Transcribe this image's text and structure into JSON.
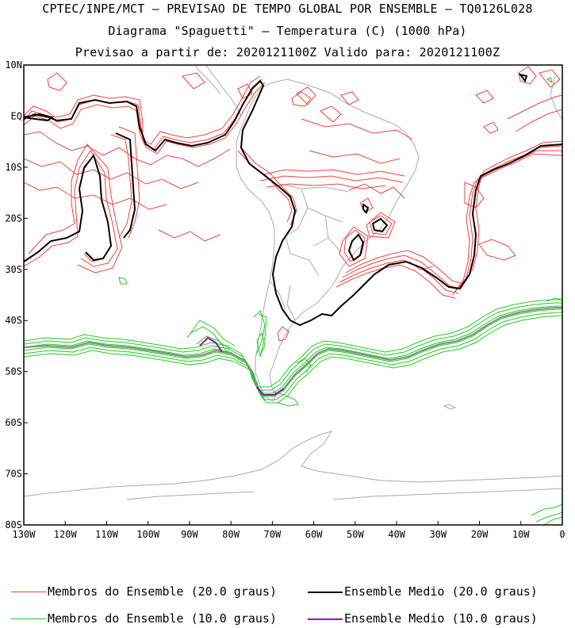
{
  "titles": {
    "line1": "CPTEC/INPE/MCT – PREVISAO DE TEMPO GLOBAL POR ENSEMBLE – TQ0126L028",
    "line2": "Diagrama \"Spaguetti\" – Temperatura (C) (1000 hPa)",
    "line3": "Previsao a partir de: 2020121100Z  Valido para: 2020121100Z"
  },
  "map": {
    "lon_range": [
      -130,
      0
    ],
    "lat_range": [
      -80,
      10
    ],
    "lat_ticks": [
      {
        "value": 10,
        "label": "10N"
      },
      {
        "value": 0,
        "label": "EQ"
      },
      {
        "value": -10,
        "label": "10S"
      },
      {
        "value": -20,
        "label": "20S"
      },
      {
        "value": -30,
        "label": "30S"
      },
      {
        "value": -40,
        "label": "40S"
      },
      {
        "value": -50,
        "label": "50S"
      },
      {
        "value": -60,
        "label": "60S"
      },
      {
        "value": -70,
        "label": "70S"
      },
      {
        "value": -80,
        "label": "80S"
      }
    ],
    "lon_ticks": [
      {
        "value": -130,
        "label": "130W"
      },
      {
        "value": -120,
        "label": "120W"
      },
      {
        "value": -110,
        "label": "110W"
      },
      {
        "value": -100,
        "label": "100W"
      },
      {
        "value": -90,
        "label": "90W"
      },
      {
        "value": -80,
        "label": "80W"
      },
      {
        "value": -70,
        "label": "70W"
      },
      {
        "value": -60,
        "label": "60W"
      },
      {
        "value": -50,
        "label": "50W"
      },
      {
        "value": -40,
        "label": "40W"
      },
      {
        "value": -30,
        "label": "30W"
      },
      {
        "value": -20,
        "label": "20W"
      },
      {
        "value": -10,
        "label": "10W"
      },
      {
        "value": 0,
        "label": "0"
      }
    ],
    "colors": {
      "member20": "#f04040",
      "mean20": "#000000",
      "member10": "#20cc20",
      "mean10": "#a000c0",
      "coast": "#aaaaaa"
    }
  },
  "legend": {
    "member20": "Membros do Ensemble (20.0 graus)",
    "mean20": "Ensemble Medio (20.0 graus)",
    "member10": "Membros do Ensemble (10.0 graus)",
    "mean10": "Ensemble Medio (10.0 graus)"
  }
}
